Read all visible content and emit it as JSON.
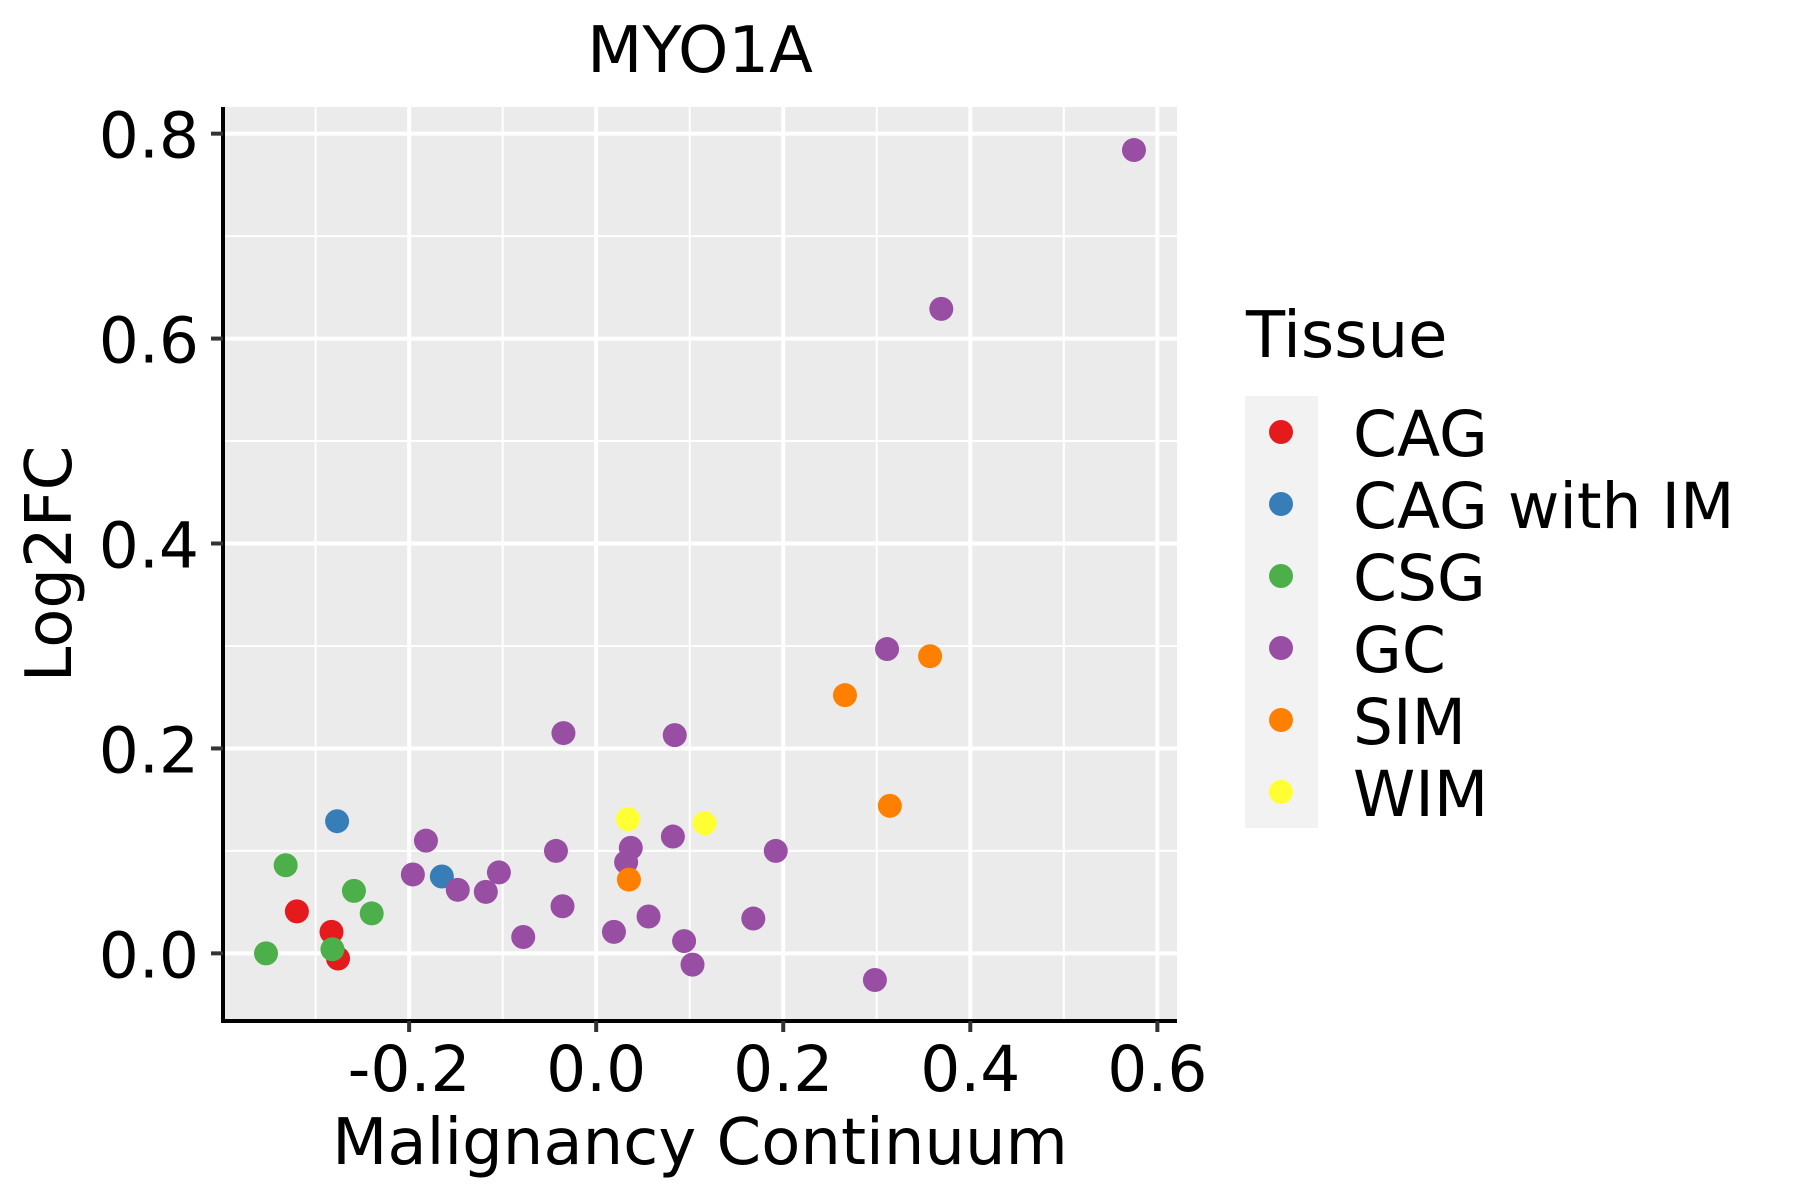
{
  "chart_data": {
    "type": "scatter",
    "title": "MYO1A",
    "xlabel": "Malignancy Continuum",
    "ylabel": "Log2FC",
    "xlim": [
      -0.399,
      0.621
    ],
    "ylim": [
      -0.066,
      0.826
    ],
    "x_ticks": [
      -0.2,
      0.0,
      0.2,
      0.4,
      0.6
    ],
    "x_tick_labels": [
      "-0.2",
      "0.0",
      "0.2",
      "0.4",
      "0.6"
    ],
    "x_minor_ticks": [
      -0.3,
      -0.1,
      0.1,
      0.3,
      0.5
    ],
    "y_ticks": [
      0.0,
      0.2,
      0.4,
      0.6,
      0.8
    ],
    "y_tick_labels": [
      "0.0",
      "0.2",
      "0.4",
      "0.6",
      "0.8"
    ],
    "y_minor_ticks": [
      0.1,
      0.3,
      0.5,
      0.7
    ],
    "grid": true,
    "legend": {
      "title": "Tissue",
      "placement": "right",
      "entries": [
        "CAG",
        "CAG with IM",
        "CSG",
        "GC",
        "SIM",
        "WIM"
      ]
    },
    "colors": {
      "CAG": "#E41A1C",
      "CAG with IM": "#377EB8",
      "CSG": "#4DAF4A",
      "GC": "#984EA3",
      "SIM": "#FF7F00",
      "WIM": "#FFFF33"
    },
    "series": [
      {
        "name": "CAG",
        "points": [
          {
            "x": -0.32,
            "y": 0.041
          },
          {
            "x": -0.283,
            "y": 0.021
          },
          {
            "x": -0.276,
            "y": -0.005
          }
        ]
      },
      {
        "name": "CAG with IM",
        "points": [
          {
            "x": -0.277,
            "y": 0.129
          },
          {
            "x": -0.165,
            "y": 0.075
          }
        ]
      },
      {
        "name": "CSG",
        "points": [
          {
            "x": -0.353,
            "y": 0.0
          },
          {
            "x": -0.332,
            "y": 0.086
          },
          {
            "x": -0.282,
            "y": 0.004
          },
          {
            "x": -0.259,
            "y": 0.061
          },
          {
            "x": -0.24,
            "y": 0.039
          }
        ]
      },
      {
        "name": "GC",
        "points": [
          {
            "x": -0.196,
            "y": 0.077
          },
          {
            "x": -0.182,
            "y": 0.11
          },
          {
            "x": -0.148,
            "y": 0.062
          },
          {
            "x": -0.118,
            "y": 0.06
          },
          {
            "x": -0.104,
            "y": 0.079
          },
          {
            "x": -0.078,
            "y": 0.016
          },
          {
            "x": -0.043,
            "y": 0.1
          },
          {
            "x": -0.036,
            "y": 0.046
          },
          {
            "x": -0.035,
            "y": 0.215
          },
          {
            "x": 0.019,
            "y": 0.021
          },
          {
            "x": 0.032,
            "y": 0.089
          },
          {
            "x": 0.037,
            "y": 0.103
          },
          {
            "x": 0.056,
            "y": 0.036
          },
          {
            "x": 0.082,
            "y": 0.114
          },
          {
            "x": 0.084,
            "y": 0.213
          },
          {
            "x": 0.094,
            "y": 0.012
          },
          {
            "x": 0.103,
            "y": -0.011
          },
          {
            "x": 0.168,
            "y": 0.034
          },
          {
            "x": 0.192,
            "y": 0.1
          },
          {
            "x": 0.298,
            "y": -0.026
          },
          {
            "x": 0.311,
            "y": 0.297
          },
          {
            "x": 0.369,
            "y": 0.629
          },
          {
            "x": 0.575,
            "y": 0.784
          }
        ]
      },
      {
        "name": "SIM",
        "points": [
          {
            "x": 0.035,
            "y": 0.072
          },
          {
            "x": 0.266,
            "y": 0.252
          },
          {
            "x": 0.314,
            "y": 0.144
          },
          {
            "x": 0.357,
            "y": 0.29
          }
        ]
      },
      {
        "name": "WIM",
        "points": [
          {
            "x": 0.034,
            "y": 0.131
          },
          {
            "x": 0.116,
            "y": 0.127
          }
        ]
      }
    ]
  }
}
